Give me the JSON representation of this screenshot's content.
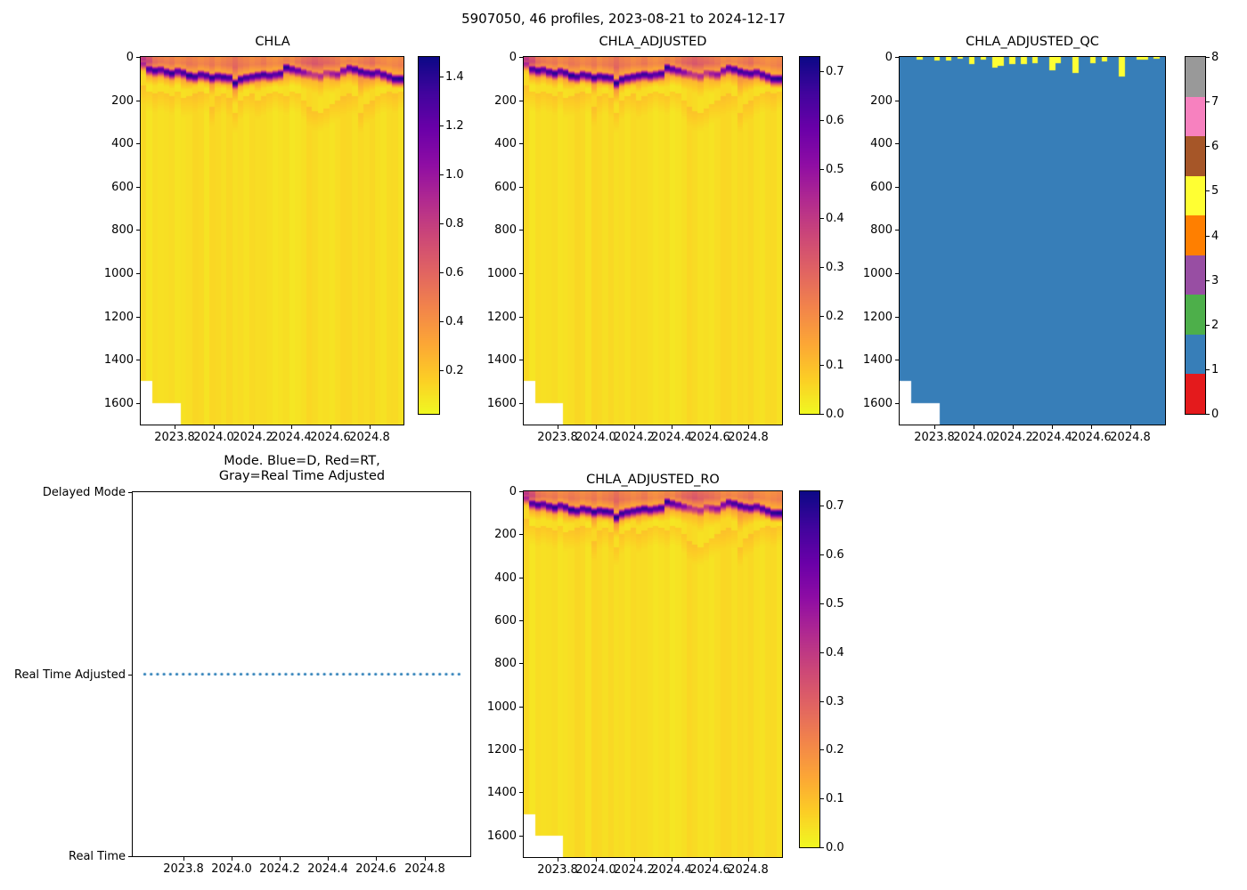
{
  "figure_title": "5907050, 46 profiles, 2023-08-21 to 2024-12-17",
  "axes_labels": {
    "depth_ticks": [
      "0",
      "200",
      "400",
      "600",
      "800",
      "1000",
      "1200",
      "1400",
      "1600"
    ],
    "time_ticks": [
      "2023.8",
      "2024.0",
      "2024.2",
      "2024.4",
      "2024.6",
      "2024.8"
    ],
    "mode_categories": [
      "Delayed Mode",
      "Real Time Adjusted",
      "Real Time"
    ]
  },
  "colors": {
    "plasma_stops": [
      "#0d0887",
      "#41049d",
      "#6a00a8",
      "#8f0da4",
      "#b12a90",
      "#cc4778",
      "#e16462",
      "#f2844b",
      "#fca636",
      "#fcce25",
      "#f0f921"
    ],
    "qc_flag_colors": [
      "#e41a1c",
      "#377eb8",
      "#4daf4a",
      "#984ea3",
      "#ff7f00",
      "#ffff33",
      "#a65628",
      "#f781bf",
      "#999999"
    ],
    "qc_base": "#377eb8",
    "qc_streak": "#ffff33",
    "mode_line_color": "#1f77b4"
  },
  "profile_data": {
    "n_profiles": 46,
    "time_start": 2023.64,
    "time_end": 2024.96,
    "depth_range_m": [
      0,
      1700
    ],
    "band_depth_m": [
      30,
      55,
      62,
      58,
      68,
      75,
      65,
      72,
      85,
      90,
      80,
      85,
      95,
      88,
      92,
      95,
      120,
      102,
      95,
      90,
      85,
      80,
      85,
      80,
      76,
      48,
      55,
      62,
      70,
      75,
      82,
      88,
      72,
      76,
      80,
      62,
      50,
      56,
      66,
      72,
      76,
      70,
      80,
      90,
      100,
      100
    ],
    "band_peak_norm": [
      0.62,
      0.88,
      0.92,
      0.85,
      0.9,
      0.95,
      0.85,
      0.9,
      0.97,
      0.92,
      0.88,
      0.9,
      0.95,
      0.9,
      0.93,
      0.9,
      0.97,
      0.93,
      0.9,
      0.88,
      0.9,
      0.92,
      0.88,
      0.85,
      0.9,
      0.95,
      0.85,
      0.8,
      0.72,
      0.6,
      0.55,
      0.6,
      0.55,
      0.65,
      0.7,
      0.75,
      0.85,
      0.9,
      0.92,
      0.88,
      0.9,
      0.85,
      0.88,
      0.9,
      0.95,
      0.97
    ],
    "surface_norm": [
      0.58,
      0.5,
      0.38,
      0.35,
      0.33,
      0.35,
      0.3,
      0.32,
      0.35,
      0.33,
      0.3,
      0.32,
      0.35,
      0.3,
      0.33,
      0.35,
      0.4,
      0.35,
      0.33,
      0.3,
      0.32,
      0.35,
      0.3,
      0.28,
      0.3,
      0.33,
      0.3,
      0.35,
      0.4,
      0.42,
      0.45,
      0.42,
      0.4,
      0.38,
      0.35,
      0.3,
      0.32,
      0.3,
      0.33,
      0.35,
      0.38,
      0.32,
      0.3,
      0.28,
      0.3,
      0.32
    ],
    "plume_depth_m": [
      130,
      160,
      170,
      160,
      170,
      180,
      160,
      190,
      180,
      170,
      160,
      170,
      230,
      180,
      170,
      190,
      260,
      200,
      180,
      170,
      200,
      180,
      170,
      160,
      170,
      180,
      160,
      170,
      200,
      230,
      250,
      260,
      240,
      220,
      200,
      180,
      170,
      180,
      260,
      220,
      200,
      180,
      170,
      160,
      170,
      160
    ],
    "max_depth_m": [
      1500,
      1500,
      1600,
      1600,
      1600,
      1600,
      1600,
      1700,
      1700,
      1700,
      1700,
      1700,
      1700,
      1700,
      1700,
      1700,
      1700,
      1700,
      1700,
      1700,
      1700,
      1700,
      1700,
      1700,
      1700,
      1700,
      1700,
      1700,
      1700,
      1700,
      1700,
      1700,
      1700,
      1700,
      1700,
      1700,
      1700,
      1700,
      1700,
      1700,
      1700,
      1700,
      1700,
      1700,
      1700,
      1700
    ],
    "qc_streaks": [
      {
        "col": 3,
        "depth_m": 12
      },
      {
        "col": 6,
        "depth_m": 15
      },
      {
        "col": 8,
        "depth_m": 16
      },
      {
        "col": 10,
        "depth_m": 8
      },
      {
        "col": 12,
        "depth_m": 34
      },
      {
        "col": 14,
        "depth_m": 14
      },
      {
        "col": 16,
        "depth_m": 48
      },
      {
        "col": 17,
        "depth_m": 40
      },
      {
        "col": 19,
        "depth_m": 34
      },
      {
        "col": 21,
        "depth_m": 34
      },
      {
        "col": 23,
        "depth_m": 27
      },
      {
        "col": 26,
        "depth_m": 62
      },
      {
        "col": 27,
        "depth_m": 30
      },
      {
        "col": 30,
        "depth_m": 75
      },
      {
        "col": 33,
        "depth_m": 27
      },
      {
        "col": 35,
        "depth_m": 21
      },
      {
        "col": 38,
        "depth_m": 89
      },
      {
        "col": 41,
        "depth_m": 14
      },
      {
        "col": 42,
        "depth_m": 11
      },
      {
        "col": 44,
        "depth_m": 10
      }
    ]
  },
  "chart_data": [
    {
      "type": "heatmap",
      "title": "CHLA",
      "x_range": [
        2023.625,
        2024.975
      ],
      "y_range": [
        0,
        1700
      ],
      "colormap": "plasma_r",
      "colorbar_range": [
        0.02,
        1.48
      ],
      "colorbar_ticks": [
        "0.2",
        "0.4",
        "0.6",
        "0.8",
        "1.0",
        "1.2",
        "1.4"
      ],
      "x_tick_labels": [
        "2023.8",
        "2024.0",
        "2024.2",
        "2024.4",
        "2024.6",
        "2024.8"
      ],
      "y_tick_labels": [
        "0",
        "200",
        "400",
        "600",
        "800",
        "1000",
        "1200",
        "1400",
        "1600"
      ],
      "data_source": "profile_data (normalized values scaled to colorbar_range)"
    },
    {
      "type": "heatmap",
      "title": "CHLA_ADJUSTED",
      "x_range": [
        2023.625,
        2024.975
      ],
      "y_range": [
        0,
        1700
      ],
      "colormap": "plasma_r",
      "colorbar_range": [
        0.0,
        0.73
      ],
      "colorbar_ticks": [
        "0.0",
        "0.1",
        "0.2",
        "0.3",
        "0.4",
        "0.5",
        "0.6",
        "0.7"
      ],
      "x_tick_labels": [
        "2023.8",
        "2024.0",
        "2024.2",
        "2024.4",
        "2024.6",
        "2024.8"
      ],
      "y_tick_labels": [
        "0",
        "200",
        "400",
        "600",
        "800",
        "1000",
        "1200",
        "1400",
        "1600"
      ],
      "data_source": "profile_data (normalized values scaled to colorbar_range)"
    },
    {
      "type": "heatmap",
      "title": "CHLA_ADJUSTED_QC",
      "x_range": [
        2023.625,
        2024.975
      ],
      "y_range": [
        0,
        1700
      ],
      "colormap": "Set1 discrete flags 0-8",
      "base_flag": 1,
      "streak_flag": 5,
      "colorbar_ticks": [
        "0",
        "1",
        "2",
        "3",
        "4",
        "5",
        "6",
        "7",
        "8"
      ],
      "x_tick_labels": [
        "2023.8",
        "2024.0",
        "2024.2",
        "2024.4",
        "2024.6",
        "2024.8"
      ],
      "y_tick_labels": [
        "0",
        "200",
        "400",
        "600",
        "800",
        "1000",
        "1200",
        "1400",
        "1600"
      ],
      "data_source": "profile_data.qc_streaks (flag 5 near surface), flag 1 elsewhere"
    },
    {
      "type": "line",
      "title_lines": [
        "Mode. Blue=D, Red=RT,",
        "Gray=Real Time Adjusted"
      ],
      "y_categories": [
        "Real Time",
        "Real Time Adjusted",
        "Delayed Mode"
      ],
      "x_tick_labels": [
        "2023.8",
        "2024.0",
        "2024.2",
        "2024.4",
        "2024.6",
        "2024.8"
      ],
      "series": [
        {
          "name": "mode",
          "style": "dotted",
          "color": "#1f77b4",
          "y_value": "Real Time Adjusted",
          "x_start": 2023.64,
          "x_end": 2024.96
        }
      ]
    },
    {
      "type": "heatmap",
      "title": "CHLA_ADJUSTED_RO",
      "x_range": [
        2023.625,
        2024.975
      ],
      "y_range": [
        0,
        1700
      ],
      "colormap": "plasma_r",
      "colorbar_range": [
        0.0,
        0.73
      ],
      "colorbar_ticks": [
        "0.0",
        "0.1",
        "0.2",
        "0.3",
        "0.4",
        "0.5",
        "0.6",
        "0.7"
      ],
      "x_tick_labels": [
        "2023.8",
        "2024.0",
        "2024.2",
        "2024.4",
        "2024.6",
        "2024.8"
      ],
      "y_tick_labels": [
        "0",
        "200",
        "400",
        "600",
        "800",
        "1000",
        "1200",
        "1400",
        "1600"
      ],
      "data_source": "profile_data (normalized values scaled to colorbar_range)"
    }
  ]
}
